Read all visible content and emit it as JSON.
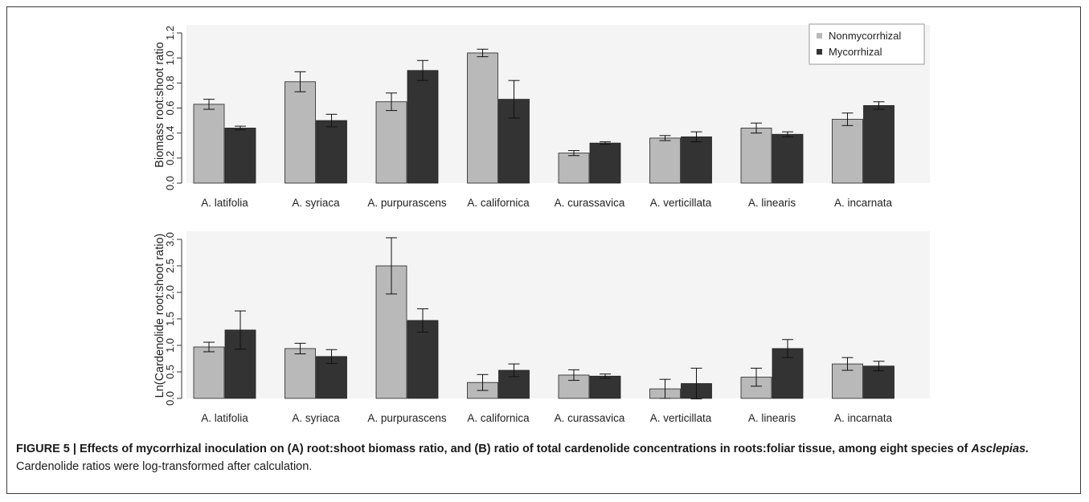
{
  "colors": {
    "nonmycorrhizal": "#b9b9b9",
    "mycorrhizal": "#333333",
    "plot_background": "#f4f4f4",
    "axis": "#333333"
  },
  "legend": {
    "items": [
      {
        "label": "Nonmycorrhizal",
        "color": "#b9b9b9"
      },
      {
        "label": "Mycorrhizal",
        "color": "#333333"
      }
    ],
    "placement": "top-right"
  },
  "chart_data": [
    {
      "type": "bar",
      "title": "",
      "xlabel": "",
      "ylabel": "Biomass root:shoot ratio",
      "ylim": [
        0,
        1.2
      ],
      "yticks": [
        "0.0",
        "0.2",
        "0.4",
        "0.6",
        "0.8",
        "1.0",
        "1.2"
      ],
      "grid": false,
      "categories": [
        "A. latifolia",
        "A. syriaca",
        "A. purpurascens",
        "A. californica",
        "A. curassavica",
        "A. verticillata",
        "A. linearis",
        "A. incarnata"
      ],
      "series": [
        {
          "name": "Nonmycorrhizal",
          "values": [
            0.63,
            0.81,
            0.65,
            1.04,
            0.24,
            0.36,
            0.44,
            0.51
          ],
          "errors": [
            0.04,
            0.08,
            0.07,
            0.03,
            0.02,
            0.02,
            0.04,
            0.05
          ]
        },
        {
          "name": "Mycorrhizal",
          "values": [
            0.44,
            0.5,
            0.9,
            0.67,
            0.32,
            0.37,
            0.39,
            0.62
          ],
          "errors": [
            0.015,
            0.05,
            0.08,
            0.15,
            0.01,
            0.04,
            0.02,
            0.03
          ]
        }
      ]
    },
    {
      "type": "bar",
      "title": "",
      "xlabel": "",
      "ylabel": "Ln(Cardenolide root:shoot ratio)",
      "ylim": [
        0,
        3.0
      ],
      "yticks": [
        "0.0",
        "0.5",
        "1.0",
        "1.5",
        "2.0",
        "2.5",
        "3.0"
      ],
      "grid": false,
      "categories": [
        "A. latifolia",
        "A. syriaca",
        "A. purpurascens",
        "A. californica",
        "A. curassavica",
        "A. verticillata",
        "A. linearis",
        "A. incarnata"
      ],
      "series": [
        {
          "name": "Nonmycorrhizal",
          "values": [
            0.97,
            0.94,
            2.5,
            0.3,
            0.44,
            0.18,
            0.4,
            0.65
          ],
          "errors": [
            0.09,
            0.1,
            0.53,
            0.15,
            0.1,
            0.18,
            0.17,
            0.12
          ]
        },
        {
          "name": "Mycorrhizal",
          "values": [
            1.29,
            0.79,
            1.47,
            0.53,
            0.42,
            0.28,
            0.94,
            0.61
          ],
          "errors": [
            0.36,
            0.13,
            0.22,
            0.12,
            0.04,
            0.29,
            0.17,
            0.09
          ]
        }
      ]
    }
  ],
  "caption": {
    "label": "FIGURE 5 | Effects of mycorrhizal inoculation on (A) root:shoot biomass ratio, and (B) ratio of total cardenolide concentrations in roots:foliar tissue, among eight species of ",
    "genus": "Asclepias.",
    "rest": " Cardenolide ratios were log-transformed after calculation."
  }
}
